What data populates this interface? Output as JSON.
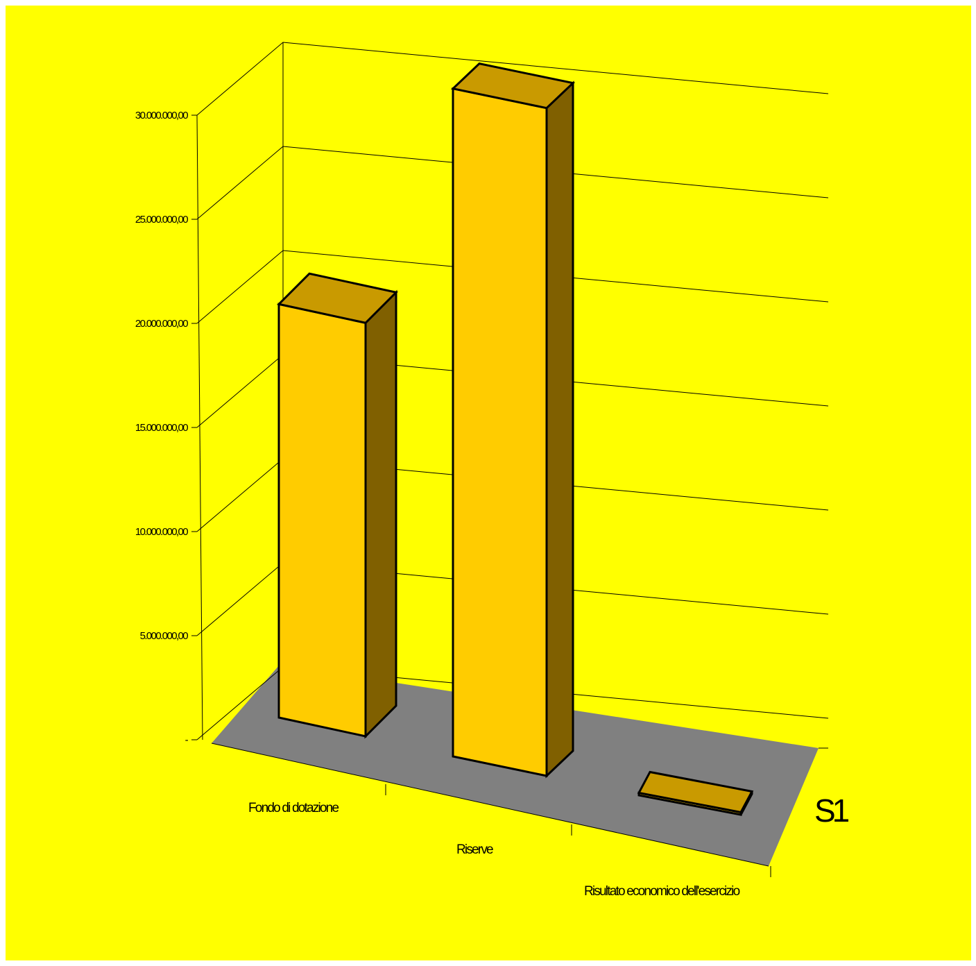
{
  "chart_data": {
    "type": "bar",
    "title": "",
    "xlabel": "",
    "ylabel": "",
    "categories": [
      "Fondo di dotazione",
      "Riserve",
      "Risultato economico dell'esercizio"
    ],
    "category_labels": [
      "Fondo di dotazione",
      "Riserve",
      "Risultato economico dell'esercizio"
    ],
    "series": [
      {
        "name": "S1",
        "values": [
          16900000,
          27300000,
          100000
        ]
      }
    ],
    "ylim": [
      0,
      30000000
    ],
    "yticks": [
      0,
      5000000,
      10000000,
      15000000,
      20000000,
      25000000,
      30000000
    ],
    "ytick_labels": [
      "-",
      "5.000.000,00",
      "10.000.000,00",
      "15.000.000,00",
      "20.000.000,00",
      "25.000.000,00",
      "30.000.000,00"
    ],
    "grid": true,
    "three_d": true
  },
  "colors": {
    "background": "#ffff00",
    "floor": "#808080",
    "bar_front": "#ffcc00",
    "bar_top": "#c99a00",
    "bar_side": "#806000"
  }
}
